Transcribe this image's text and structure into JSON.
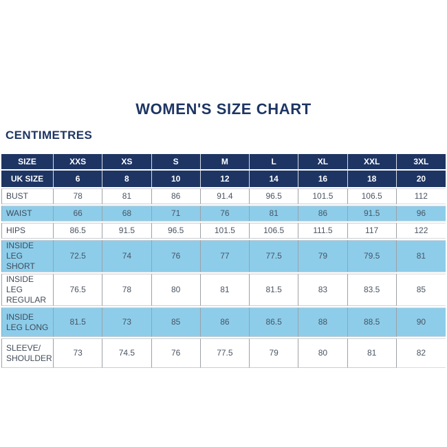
{
  "title": "WOMEN'S SIZE CHART",
  "units_label": "CENTIMETRES",
  "colors": {
    "header_navy": "#1e3563",
    "stripe_blue": "#8dcdea",
    "body_text": "#4a5462",
    "background": "#ffffff"
  },
  "chart_data": {
    "type": "table",
    "title": "WOMEN'S SIZE CHART",
    "units": "CENTIMETRES",
    "column_headers": [
      "SIZE",
      "XXS",
      "XS",
      "S",
      "M",
      "L",
      "XL",
      "XXL",
      "3XL"
    ],
    "uk_size_row": {
      "label": "UK SIZE",
      "values": [
        "6",
        "8",
        "10",
        "12",
        "14",
        "16",
        "18",
        "20"
      ]
    },
    "rows": [
      {
        "label": "BUST",
        "values": [
          "78",
          "81",
          "86",
          "91.4",
          "96.5",
          "101.5",
          "106.5",
          "112"
        ]
      },
      {
        "label": "WAIST",
        "values": [
          "66",
          "68",
          "71",
          "76",
          "81",
          "86",
          "91.5",
          "96"
        ]
      },
      {
        "label": "HIPS",
        "values": [
          "86.5",
          "91.5",
          "96.5",
          "101.5",
          "106.5",
          "111.5",
          "117",
          "122"
        ]
      },
      {
        "label": "INSIDE LEG SHORT",
        "values": [
          "72.5",
          "74",
          "76",
          "77",
          "77.5",
          "79",
          "79.5",
          "81"
        ]
      },
      {
        "label": "INSIDE LEG REGULAR",
        "values": [
          "76.5",
          "78",
          "80",
          "81",
          "81.5",
          "83",
          "83.5",
          "85"
        ]
      },
      {
        "label": "INSIDE LEG LONG",
        "values": [
          "81.5",
          "73",
          "85",
          "86",
          "86.5",
          "88",
          "88.5",
          "90"
        ]
      },
      {
        "label": "SLEEVE/SHOULDER",
        "values": [
          "73",
          "74.5",
          "76",
          "77.5",
          "79",
          "80",
          "81",
          "82"
        ]
      }
    ],
    "row_stripe_pattern": [
      "white",
      "blue",
      "white",
      "blue",
      "white",
      "blue",
      "white"
    ],
    "legend_position": "none",
    "grid": true
  }
}
